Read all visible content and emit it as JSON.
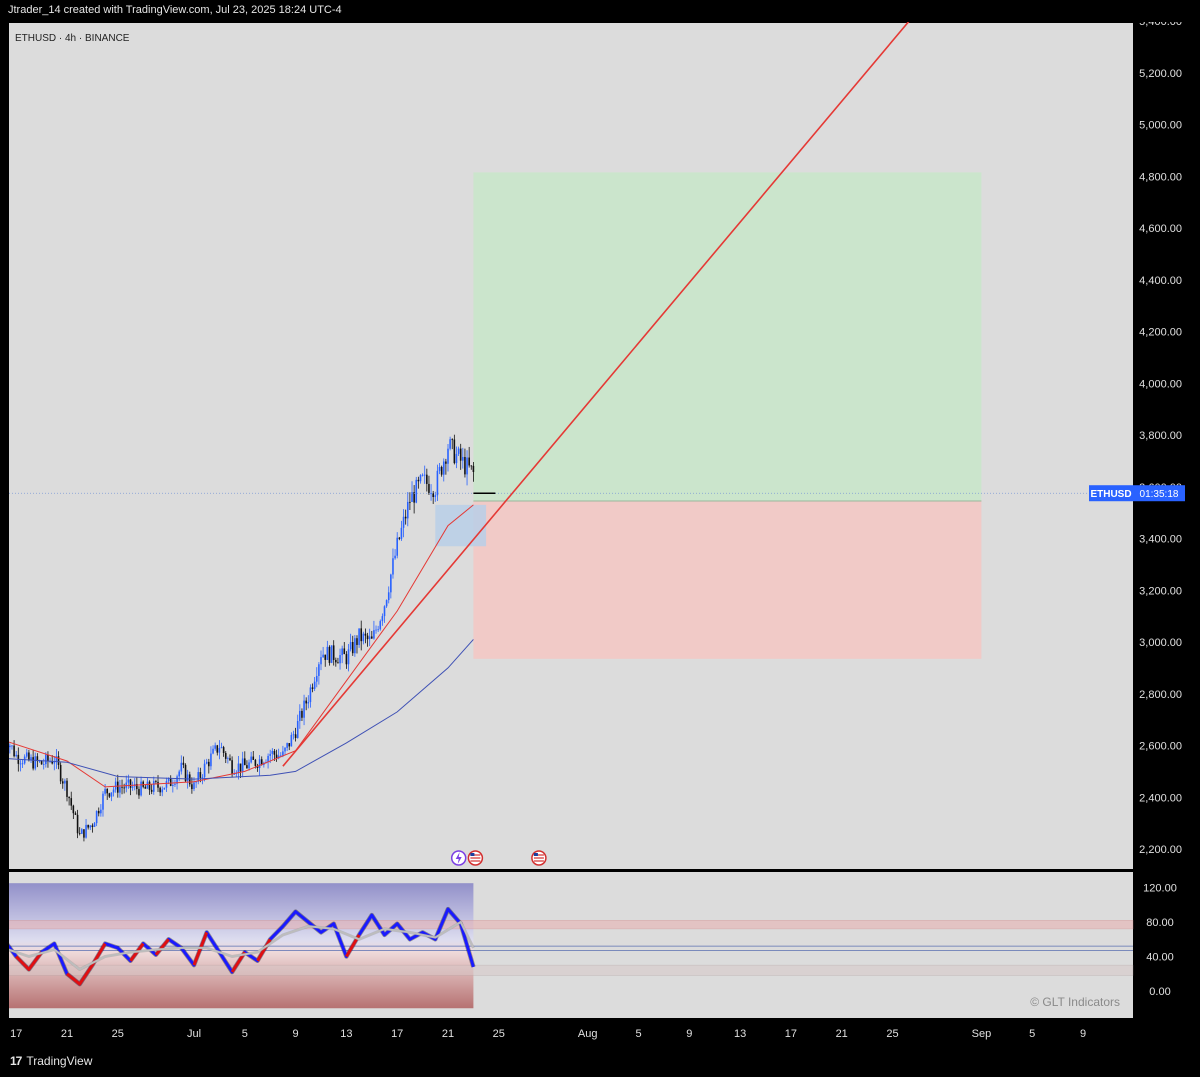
{
  "header": {
    "attribution": "Jtrader_14 created with TradingView.com, Jul 23, 2025 18:24 UTC-4"
  },
  "footer": {
    "brand": "TradingView",
    "logo_icon": "tradingview-logo-icon"
  },
  "chart_data": [
    {
      "type": "candlestick",
      "title": "ETHUSD · 4h · BINANCE",
      "symbol": "ETHUSD",
      "timeframe": "4h",
      "exchange": "BINANCE",
      "ylim": [
        2140,
        5420
      ],
      "y_ticks": [
        2200,
        2400,
        2600,
        2800,
        3000,
        3200,
        3400,
        3600,
        3800,
        4000,
        4200,
        4400,
        4600,
        4800,
        5000,
        5200,
        5400
      ],
      "y_tick_labels": [
        "2,200.00",
        "2,400.00",
        "2,600.00",
        "2,800.00",
        "3,000.00",
        "3,200.00",
        "3,400.00",
        "3,600.00",
        "3,800.00",
        "4,000.00",
        "4,200.00",
        "4,400.00",
        "4,600.00",
        "4,800.00",
        "5,000.00",
        "5,200.00",
        "5,400.00"
      ],
      "x_ticks": [
        {
          "date": "2025-06-17",
          "label": "17"
        },
        {
          "date": "2025-06-21",
          "label": "21"
        },
        {
          "date": "2025-06-25",
          "label": "25"
        },
        {
          "date": "2025-07-01",
          "label": "Jul"
        },
        {
          "date": "2025-07-05",
          "label": "5"
        },
        {
          "date": "2025-07-09",
          "label": "9"
        },
        {
          "date": "2025-07-13",
          "label": "13"
        },
        {
          "date": "2025-07-17",
          "label": "17"
        },
        {
          "date": "2025-07-21",
          "label": "21"
        },
        {
          "date": "2025-07-25",
          "label": "25"
        },
        {
          "date": "2025-08-01",
          "label": "Aug"
        },
        {
          "date": "2025-08-05",
          "label": "5"
        },
        {
          "date": "2025-08-09",
          "label": "9"
        },
        {
          "date": "2025-08-13",
          "label": "13"
        },
        {
          "date": "2025-08-17",
          "label": "17"
        },
        {
          "date": "2025-08-21",
          "label": "21"
        },
        {
          "date": "2025-08-25",
          "label": "25"
        },
        {
          "date": "2025-09-01",
          "label": "Sep"
        },
        {
          "date": "2025-09-05",
          "label": "5"
        },
        {
          "date": "2025-09-09",
          "label": "9"
        }
      ],
      "price_path": [
        [
          "2025-06-16",
          2650
        ],
        [
          "2025-06-17",
          2560
        ],
        [
          "2025-06-18",
          2540
        ],
        [
          "2025-06-19",
          2530
        ],
        [
          "2025-06-20",
          2550
        ],
        [
          "2025-06-21",
          2430
        ],
        [
          "2025-06-22",
          2250
        ],
        [
          "2025-06-23",
          2300
        ],
        [
          "2025-06-24",
          2420
        ],
        [
          "2025-06-25",
          2440
        ],
        [
          "2025-06-26",
          2440
        ],
        [
          "2025-06-27",
          2430
        ],
        [
          "2025-06-28",
          2440
        ],
        [
          "2025-06-29",
          2450
        ],
        [
          "2025-06-30",
          2510
        ],
        [
          "2025-07-01",
          2440
        ],
        [
          "2025-07-02",
          2530
        ],
        [
          "2025-07-03",
          2600
        ],
        [
          "2025-07-04",
          2520
        ],
        [
          "2025-07-05",
          2520
        ],
        [
          "2025-07-06",
          2540
        ],
        [
          "2025-07-07",
          2570
        ],
        [
          "2025-07-08",
          2560
        ],
        [
          "2025-07-09",
          2660
        ],
        [
          "2025-07-10",
          2790
        ],
        [
          "2025-07-11",
          2960
        ],
        [
          "2025-07-12",
          2950
        ],
        [
          "2025-07-13",
          2940
        ],
        [
          "2025-07-14",
          3020
        ],
        [
          "2025-07-15",
          3000
        ],
        [
          "2025-07-16",
          3150
        ],
        [
          "2025-07-17",
          3370
        ],
        [
          "2025-07-18",
          3550
        ],
        [
          "2025-07-19",
          3620
        ],
        [
          "2025-07-20",
          3600
        ],
        [
          "2025-07-21",
          3760
        ],
        [
          "2025-07-22",
          3700
        ],
        [
          "2025-07-23",
          3650
        ]
      ],
      "current_price": 3575,
      "price_label": {
        "symbol": "ETHUSD",
        "countdown": "01:35:18",
        "color": "#2962ff"
      },
      "moving_averages": [
        {
          "color": "#e53935",
          "points": [
            [
              "2025-06-16",
              2620
            ],
            [
              "2025-06-21",
              2540
            ],
            [
              "2025-06-24",
              2440
            ],
            [
              "2025-07-01",
              2460
            ],
            [
              "2025-07-05",
              2500
            ],
            [
              "2025-07-09",
              2580
            ],
            [
              "2025-07-13",
              2850
            ],
            [
              "2025-07-17",
              3120
            ],
            [
              "2025-07-21",
              3450
            ],
            [
              "2025-07-23",
              3530
            ]
          ]
        },
        {
          "color": "#3f51b5",
          "points": [
            [
              "2025-06-16",
              2550
            ],
            [
              "2025-06-21",
              2535
            ],
            [
              "2025-06-25",
              2480
            ],
            [
              "2025-07-01",
              2470
            ],
            [
              "2025-07-07",
              2485
            ],
            [
              "2025-07-09",
              2500
            ],
            [
              "2025-07-13",
              2610
            ],
            [
              "2025-07-17",
              2730
            ],
            [
              "2025-07-21",
              2900
            ],
            [
              "2025-07-23",
              3010
            ]
          ]
        }
      ],
      "trendline": {
        "color": "#e53935",
        "from": [
          "2025-07-08",
          2520
        ],
        "to": [
          "2025-08-27",
          5440
        ]
      },
      "position_tool": {
        "entry": 3545,
        "target": 4815,
        "stop": 2935,
        "start": "2025-07-23",
        "end": "2025-09-01",
        "profit_color": "#c8e6c9",
        "loss_color": "#f4c7c3"
      },
      "demand_zone": {
        "from": "2025-07-20",
        "to": "2025-07-24",
        "top": 3530,
        "bottom": 3370,
        "color": "#b8cfe8"
      },
      "event_icons": [
        {
          "date": "2025-07-22",
          "icon": "dividend-lightning-icon"
        },
        {
          "date": "2025-07-23",
          "icon": "us-flag-event-icon"
        },
        {
          "date": "2025-07-28",
          "icon": "us-flag-event-icon"
        }
      ]
    },
    {
      "type": "oscillator",
      "ylim": [
        -20,
        125
      ],
      "y_ticks": [
        0,
        40,
        80,
        120
      ],
      "y_tick_labels": [
        "0.00",
        "40.00",
        "80.00",
        "120.00"
      ],
      "overbought_band": [
        72,
        82
      ],
      "oversold_band": [
        18,
        30
      ],
      "mid_lines": [
        47,
        52
      ],
      "watermark": "© GLT Indicators",
      "series": [
        {
          "role": "fast",
          "color": "#1a1aff",
          "points": [
            [
              "2025-06-16",
              60
            ],
            [
              "2025-06-17",
              40
            ],
            [
              "2025-06-18",
              25
            ],
            [
              "2025-06-19",
              45
            ],
            [
              "2025-06-20",
              55
            ],
            [
              "2025-06-21",
              20
            ],
            [
              "2025-06-22",
              8
            ],
            [
              "2025-06-23",
              30
            ],
            [
              "2025-06-24",
              55
            ],
            [
              "2025-06-25",
              50
            ],
            [
              "2025-06-26",
              35
            ],
            [
              "2025-06-27",
              55
            ],
            [
              "2025-06-28",
              42
            ],
            [
              "2025-06-29",
              60
            ],
            [
              "2025-06-30",
              50
            ],
            [
              "2025-07-01",
              30
            ],
            [
              "2025-07-02",
              68
            ],
            [
              "2025-07-03",
              45
            ],
            [
              "2025-07-04",
              22
            ],
            [
              "2025-07-05",
              45
            ],
            [
              "2025-07-06",
              35
            ],
            [
              "2025-07-07",
              60
            ],
            [
              "2025-07-08",
              75
            ],
            [
              "2025-07-09",
              92
            ],
            [
              "2025-07-10",
              80
            ],
            [
              "2025-07-11",
              68
            ],
            [
              "2025-07-12",
              78
            ],
            [
              "2025-07-13",
              40
            ],
            [
              "2025-07-14",
              65
            ],
            [
              "2025-07-15",
              88
            ],
            [
              "2025-07-16",
              65
            ],
            [
              "2025-07-17",
              78
            ],
            [
              "2025-07-18",
              60
            ],
            [
              "2025-07-19",
              68
            ],
            [
              "2025-07-20",
              60
            ],
            [
              "2025-07-21",
              95
            ],
            [
              "2025-07-22",
              78
            ],
            [
              "2025-07-23",
              28
            ]
          ]
        },
        {
          "role": "slow",
          "color": "#bdbdbd",
          "points": [
            [
              "2025-06-16",
              50
            ],
            [
              "2025-06-18",
              40
            ],
            [
              "2025-06-20",
              48
            ],
            [
              "2025-06-22",
              25
            ],
            [
              "2025-06-24",
              40
            ],
            [
              "2025-06-26",
              45
            ],
            [
              "2025-06-28",
              48
            ],
            [
              "2025-06-30",
              50
            ],
            [
              "2025-07-02",
              50
            ],
            [
              "2025-07-04",
              40
            ],
            [
              "2025-07-06",
              45
            ],
            [
              "2025-07-08",
              65
            ],
            [
              "2025-07-10",
              75
            ],
            [
              "2025-07-12",
              72
            ],
            [
              "2025-07-14",
              60
            ],
            [
              "2025-07-16",
              72
            ],
            [
              "2025-07-18",
              68
            ],
            [
              "2025-07-20",
              62
            ],
            [
              "2025-07-22",
              80
            ],
            [
              "2025-07-23",
              50
            ]
          ]
        }
      ]
    }
  ]
}
